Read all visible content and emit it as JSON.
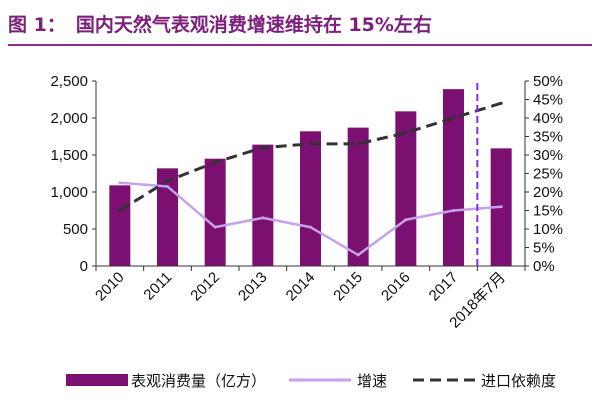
{
  "title": {
    "number": "图 1：",
    "text": "国内天然气表观消费增速维持在 15%左右"
  },
  "colors": {
    "bar": "#7c0f72",
    "growth": "#c7a0ec",
    "import": "#333333",
    "divider": "#8a2be2",
    "title": "#7b1f7b"
  },
  "chart_data": {
    "type": "bar",
    "categories": [
      "2010",
      "2011",
      "2012",
      "2013",
      "2014",
      "2015",
      "2016",
      "2017",
      "2018年7月"
    ],
    "series": [
      {
        "name": "表观消费量（亿方）",
        "type": "bar",
        "axis": "left",
        "values": [
          1090,
          1320,
          1450,
          1640,
          1820,
          1870,
          2090,
          2390,
          1590
        ]
      },
      {
        "name": "增速",
        "type": "line",
        "axis": "right",
        "values": [
          22.5,
          21.5,
          10.5,
          13,
          10.5,
          3,
          12.5,
          15,
          16
        ]
      },
      {
        "name": "进口依赖度",
        "type": "line",
        "style": "dashed",
        "axis": "right",
        "values": [
          15,
          23,
          28,
          32,
          33,
          33,
          36,
          40,
          44
        ]
      }
    ],
    "y_left": {
      "range": [
        0,
        2500
      ],
      "ticks": [
        "0",
        "500",
        "1,000",
        "1,500",
        "2,000",
        "2,500"
      ]
    },
    "y_right": {
      "range": [
        0,
        50
      ],
      "ticks": [
        "0%",
        "5%",
        "10%",
        "15%",
        "20%",
        "25%",
        "30%",
        "35%",
        "40%",
        "45%",
        "50%"
      ]
    },
    "legend": {
      "position": "bottom",
      "items": [
        "表观消费量（亿方）",
        "增速",
        "进口依赖度"
      ]
    },
    "grid": false
  }
}
